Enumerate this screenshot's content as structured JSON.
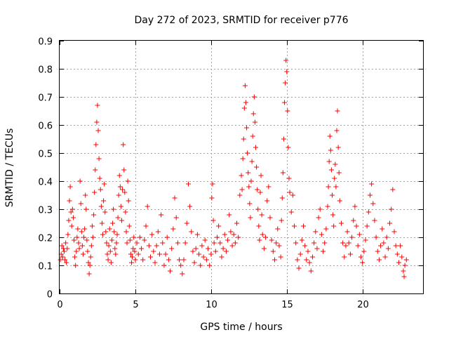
{
  "chart_data": {
    "type": "scatter",
    "title": "Day 272 of 2023, SRMTID for receiver p776",
    "xlabel": "GPS time / hours",
    "ylabel": "SRMTID / TECUs",
    "xlim": [
      0,
      24
    ],
    "ylim": [
      0,
      0.9
    ],
    "xticks": [
      0,
      5,
      10,
      15,
      20
    ],
    "yticks": [
      0,
      0.1,
      0.2,
      0.3,
      0.4,
      0.5,
      0.6,
      0.7,
      0.8,
      0.9
    ],
    "xtick_labels": [
      "0",
      "5",
      "10",
      "15",
      "20"
    ],
    "ytick_labels": [
      "0",
      "0.1",
      "0.2",
      "0.3",
      "0.4",
      "0.5",
      "0.6",
      "0.7",
      "0.8",
      "0.9"
    ],
    "grid": true,
    "marker": "+",
    "color": "#ff0000",
    "series": [
      {
        "name": "SRMTID",
        "points": [
          [
            0.05,
            0.12
          ],
          [
            0.1,
            0.14
          ],
          [
            0.15,
            0.17
          ],
          [
            0.2,
            0.13
          ],
          [
            0.25,
            0.16
          ],
          [
            0.3,
            0.15
          ],
          [
            0.35,
            0.12
          ],
          [
            0.4,
            0.18
          ],
          [
            0.45,
            0.11
          ],
          [
            0.5,
            0.16
          ],
          [
            0.55,
            0.21
          ],
          [
            0.6,
            0.26
          ],
          [
            0.65,
            0.33
          ],
          [
            0.7,
            0.38
          ],
          [
            0.75,
            0.29
          ],
          [
            0.8,
            0.24
          ],
          [
            0.85,
            0.3
          ],
          [
            0.9,
            0.27
          ],
          [
            0.95,
            0.19
          ],
          [
            1.0,
            0.13
          ],
          [
            1.05,
            0.1
          ],
          [
            1.1,
            0.15
          ],
          [
            1.15,
            0.2
          ],
          [
            1.2,
            0.23
          ],
          [
            1.25,
            0.18
          ],
          [
            1.3,
            0.16
          ],
          [
            1.35,
            0.4
          ],
          [
            1.4,
            0.32
          ],
          [
            1.45,
            0.22
          ],
          [
            1.5,
            0.17
          ],
          [
            1.55,
            0.14
          ],
          [
            1.6,
            0.2
          ],
          [
            1.65,
            0.23
          ],
          [
            1.7,
            0.35
          ],
          [
            1.75,
            0.3
          ],
          [
            1.8,
            0.19
          ],
          [
            1.85,
            0.15
          ],
          [
            1.9,
            0.11
          ],
          [
            1.95,
            0.07
          ],
          [
            2.0,
            0.1
          ],
          [
            2.05,
            0.13
          ],
          [
            2.1,
            0.17
          ],
          [
            2.15,
            0.24
          ],
          [
            2.2,
            0.2
          ],
          [
            2.25,
            0.28
          ],
          [
            2.3,
            0.36
          ],
          [
            2.35,
            0.44
          ],
          [
            2.4,
            0.53
          ],
          [
            2.45,
            0.61
          ],
          [
            2.5,
            0.67
          ],
          [
            2.55,
            0.58
          ],
          [
            2.6,
            0.48
          ],
          [
            2.65,
            0.41
          ],
          [
            2.7,
            0.37
          ],
          [
            2.75,
            0.31
          ],
          [
            2.8,
            0.25
          ],
          [
            2.85,
            0.21
          ],
          [
            2.9,
            0.33
          ],
          [
            2.95,
            0.39
          ],
          [
            3.0,
            0.29
          ],
          [
            3.05,
            0.22
          ],
          [
            3.1,
            0.18
          ],
          [
            3.15,
            0.14
          ],
          [
            3.2,
            0.12
          ],
          [
            3.25,
            0.17
          ],
          [
            3.3,
            0.23
          ],
          [
            3.35,
            0.15
          ],
          [
            3.4,
            0.11
          ],
          [
            3.45,
            0.19
          ],
          [
            3.5,
            0.25
          ],
          [
            3.55,
            0.3
          ],
          [
            3.6,
            0.22
          ],
          [
            3.65,
            0.16
          ],
          [
            3.7,
            0.14
          ],
          [
            3.75,
            0.18
          ],
          [
            3.8,
            0.21
          ],
          [
            3.85,
            0.27
          ],
          [
            3.9,
            0.35
          ],
          [
            3.95,
            0.42
          ],
          [
            4.0,
            0.38
          ],
          [
            4.05,
            0.31
          ],
          [
            4.1,
            0.26
          ],
          [
            4.15,
            0.37
          ],
          [
            4.2,
            0.53
          ],
          [
            4.25,
            0.44
          ],
          [
            4.3,
            0.36
          ],
          [
            4.35,
            0.29
          ],
          [
            4.4,
            0.22
          ],
          [
            4.45,
            0.18
          ],
          [
            4.5,
            0.4
          ],
          [
            4.55,
            0.33
          ],
          [
            4.6,
            0.24
          ],
          [
            4.65,
            0.19
          ],
          [
            4.7,
            0.14
          ],
          [
            4.75,
            0.11
          ],
          [
            4.8,
            0.13
          ],
          [
            4.85,
            0.16
          ],
          [
            4.9,
            0.2
          ],
          [
            4.95,
            0.15
          ],
          [
            5.0,
            0.12
          ],
          [
            5.1,
            0.18
          ],
          [
            5.2,
            0.14
          ],
          [
            5.3,
            0.2
          ],
          [
            5.4,
            0.16
          ],
          [
            5.5,
            0.12
          ],
          [
            5.6,
            0.19
          ],
          [
            5.7,
            0.24
          ],
          [
            5.8,
            0.31
          ],
          [
            5.9,
            0.17
          ],
          [
            6.0,
            0.13
          ],
          [
            6.1,
            0.21
          ],
          [
            6.2,
            0.15
          ],
          [
            6.3,
            0.11
          ],
          [
            6.4,
            0.17
          ],
          [
            6.5,
            0.22
          ],
          [
            6.6,
            0.14
          ],
          [
            6.7,
            0.28
          ],
          [
            6.8,
            0.18
          ],
          [
            6.9,
            0.1
          ],
          [
            7.0,
            0.14
          ],
          [
            7.1,
            0.2
          ],
          [
            7.2,
            0.12
          ],
          [
            7.3,
            0.08
          ],
          [
            7.4,
            0.16
          ],
          [
            7.5,
            0.23
          ],
          [
            7.6,
            0.34
          ],
          [
            7.7,
            0.27
          ],
          [
            7.8,
            0.18
          ],
          [
            7.9,
            0.12
          ],
          [
            8.0,
            0.1
          ],
          [
            8.1,
            0.07
          ],
          [
            8.2,
            0.12
          ],
          [
            8.3,
            0.18
          ],
          [
            8.4,
            0.25
          ],
          [
            8.5,
            0.39
          ],
          [
            8.6,
            0.31
          ],
          [
            8.7,
            0.22
          ],
          [
            8.8,
            0.15
          ],
          [
            8.9,
            0.11
          ],
          [
            9.0,
            0.16
          ],
          [
            9.1,
            0.21
          ],
          [
            9.2,
            0.14
          ],
          [
            9.3,
            0.1
          ],
          [
            9.4,
            0.17
          ],
          [
            9.5,
            0.13
          ],
          [
            9.6,
            0.19
          ],
          [
            9.7,
            0.12
          ],
          [
            9.8,
            0.16
          ],
          [
            9.9,
            0.1
          ],
          [
            10.0,
            0.14
          ],
          [
            10.05,
            0.34
          ],
          [
            10.1,
            0.39
          ],
          [
            10.15,
            0.26
          ],
          [
            10.2,
            0.18
          ],
          [
            10.3,
            0.15
          ],
          [
            10.4,
            0.2
          ],
          [
            10.5,
            0.24
          ],
          [
            10.6,
            0.18
          ],
          [
            10.7,
            0.13
          ],
          [
            10.8,
            0.16
          ],
          [
            10.9,
            0.21
          ],
          [
            11.0,
            0.15
          ],
          [
            11.1,
            0.19
          ],
          [
            11.2,
            0.28
          ],
          [
            11.3,
            0.22
          ],
          [
            11.4,
            0.17
          ],
          [
            11.5,
            0.21
          ],
          [
            11.6,
            0.18
          ],
          [
            11.7,
            0.25
          ],
          [
            11.8,
            0.2
          ],
          [
            11.9,
            0.35
          ],
          [
            12.0,
            0.42
          ],
          [
            12.05,
            0.37
          ],
          [
            12.1,
            0.48
          ],
          [
            12.15,
            0.55
          ],
          [
            12.2,
            0.66
          ],
          [
            12.25,
            0.74
          ],
          [
            12.3,
            0.68
          ],
          [
            12.35,
            0.59
          ],
          [
            12.4,
            0.5
          ],
          [
            12.45,
            0.43
          ],
          [
            12.5,
            0.38
          ],
          [
            12.55,
            0.32
          ],
          [
            12.6,
            0.27
          ],
          [
            12.65,
            0.4
          ],
          [
            12.7,
            0.47
          ],
          [
            12.75,
            0.56
          ],
          [
            12.8,
            0.64
          ],
          [
            12.85,
            0.7
          ],
          [
            12.9,
            0.61
          ],
          [
            12.95,
            0.52
          ],
          [
            13.0,
            0.45
          ],
          [
            13.05,
            0.37
          ],
          [
            13.1,
            0.3
          ],
          [
            13.15,
            0.24
          ],
          [
            13.2,
            0.19
          ],
          [
            13.25,
            0.36
          ],
          [
            13.3,
            0.42
          ],
          [
            13.35,
            0.28
          ],
          [
            13.4,
            0.21
          ],
          [
            13.5,
            0.16
          ],
          [
            13.6,
            0.2
          ],
          [
            13.7,
            0.33
          ],
          [
            13.8,
            0.38
          ],
          [
            13.9,
            0.27
          ],
          [
            14.0,
            0.19
          ],
          [
            14.1,
            0.15
          ],
          [
            14.2,
            0.12
          ],
          [
            14.3,
            0.18
          ],
          [
            14.4,
            0.23
          ],
          [
            14.5,
            0.17
          ],
          [
            14.6,
            0.13
          ],
          [
            14.65,
            0.26
          ],
          [
            14.7,
            0.34
          ],
          [
            14.75,
            0.43
          ],
          [
            14.8,
            0.55
          ],
          [
            14.85,
            0.68
          ],
          [
            14.9,
            0.75
          ],
          [
            14.95,
            0.83
          ],
          [
            15.0,
            0.79
          ],
          [
            15.05,
            0.65
          ],
          [
            15.1,
            0.52
          ],
          [
            15.15,
            0.41
          ],
          [
            15.2,
            0.36
          ],
          [
            15.3,
            0.29
          ],
          [
            15.4,
            0.35
          ],
          [
            15.5,
            0.24
          ],
          [
            15.6,
            0.18
          ],
          [
            15.7,
            0.12
          ],
          [
            15.8,
            0.09
          ],
          [
            15.9,
            0.14
          ],
          [
            16.0,
            0.19
          ],
          [
            16.1,
            0.24
          ],
          [
            16.2,
            0.17
          ],
          [
            16.3,
            0.12
          ],
          [
            16.4,
            0.15
          ],
          [
            16.5,
            0.11
          ],
          [
            16.6,
            0.08
          ],
          [
            16.7,
            0.13
          ],
          [
            16.8,
            0.18
          ],
          [
            16.9,
            0.22
          ],
          [
            17.0,
            0.16
          ],
          [
            17.1,
            0.27
          ],
          [
            17.2,
            0.3
          ],
          [
            17.3,
            0.21
          ],
          [
            17.4,
            0.15
          ],
          [
            17.5,
            0.18
          ],
          [
            17.6,
            0.23
          ],
          [
            17.7,
            0.31
          ],
          [
            17.75,
            0.38
          ],
          [
            17.8,
            0.47
          ],
          [
            17.85,
            0.56
          ],
          [
            17.9,
            0.51
          ],
          [
            17.95,
            0.44
          ],
          [
            18.0,
            0.35
          ],
          [
            18.05,
            0.28
          ],
          [
            18.1,
            0.24
          ],
          [
            18.15,
            0.41
          ],
          [
            18.2,
            0.46
          ],
          [
            18.25,
            0.38
          ],
          [
            18.3,
            0.58
          ],
          [
            18.35,
            0.65
          ],
          [
            18.4,
            0.52
          ],
          [
            18.45,
            0.43
          ],
          [
            18.5,
            0.33
          ],
          [
            18.6,
            0.25
          ],
          [
            18.7,
            0.18
          ],
          [
            18.8,
            0.13
          ],
          [
            18.9,
            0.17
          ],
          [
            19.0,
            0.22
          ],
          [
            19.1,
            0.18
          ],
          [
            19.2,
            0.14
          ],
          [
            19.3,
            0.2
          ],
          [
            19.4,
            0.26
          ],
          [
            19.5,
            0.31
          ],
          [
            19.6,
            0.24
          ],
          [
            19.7,
            0.17
          ],
          [
            19.8,
            0.21
          ],
          [
            19.9,
            0.13
          ],
          [
            20.0,
            0.11
          ],
          [
            20.1,
            0.15
          ],
          [
            20.2,
            0.19
          ],
          [
            20.3,
            0.24
          ],
          [
            20.4,
            0.29
          ],
          [
            20.5,
            0.35
          ],
          [
            20.6,
            0.39
          ],
          [
            20.7,
            0.32
          ],
          [
            20.8,
            0.26
          ],
          [
            20.9,
            0.2
          ],
          [
            21.0,
            0.15
          ],
          [
            21.1,
            0.12
          ],
          [
            21.2,
            0.17
          ],
          [
            21.3,
            0.23
          ],
          [
            21.4,
            0.18
          ],
          [
            21.5,
            0.13
          ],
          [
            21.6,
            0.2
          ],
          [
            21.7,
            0.16
          ],
          [
            21.8,
            0.25
          ],
          [
            21.9,
            0.3
          ],
          [
            22.0,
            0.37
          ],
          [
            22.1,
            0.22
          ],
          [
            22.2,
            0.17
          ],
          [
            22.3,
            0.14
          ],
          [
            22.4,
            0.11
          ],
          [
            22.5,
            0.17
          ],
          [
            22.6,
            0.13
          ],
          [
            22.7,
            0.08
          ],
          [
            22.75,
            0.06
          ],
          [
            22.8,
            0.1
          ],
          [
            22.9,
            0.12
          ]
        ]
      }
    ]
  }
}
